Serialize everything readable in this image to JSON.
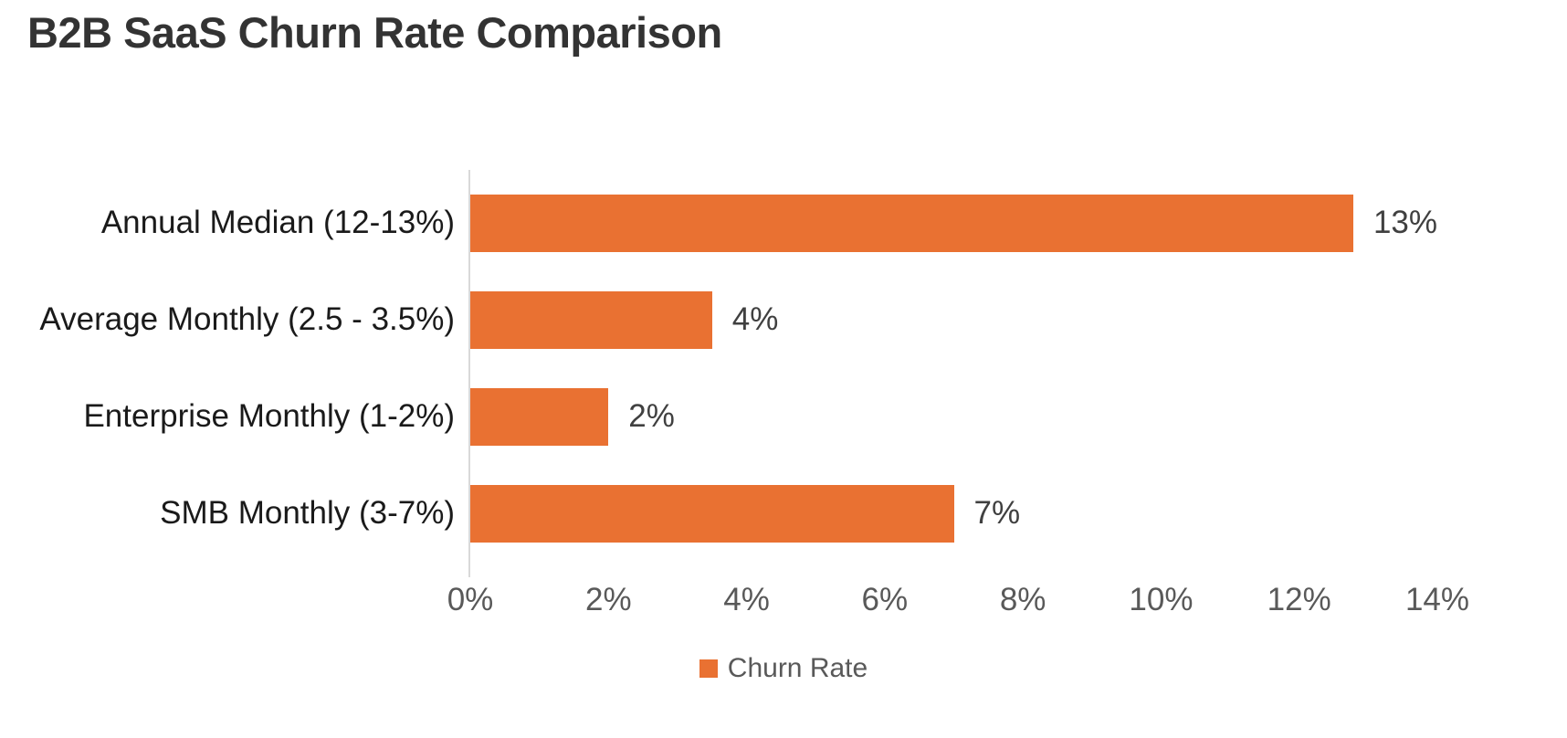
{
  "title": "B2B SaaS Churn Rate Comparison",
  "colors": {
    "bar": "#E97132",
    "axis_line": "#D9D9D9",
    "title_text": "#333333",
    "category_text": "#1A1A1A",
    "tick_text": "#595959",
    "data_label_text": "#404040",
    "legend_text": "#595959",
    "background": "#FFFFFF"
  },
  "chart_data": {
    "type": "bar",
    "orientation": "horizontal",
    "title": "B2B SaaS Churn Rate Comparison",
    "categories": [
      "Annual Median (12-13%)",
      "Average Monthly (2.5 - 3.5%)",
      "Enterprise Monthly (1-2%)",
      "SMB Monthly (3-7%)"
    ],
    "series": [
      {
        "name": "Churn Rate",
        "values": [
          13,
          3.5,
          2,
          7
        ],
        "data_labels": [
          "13%",
          "4%",
          "2%",
          "7%"
        ]
      }
    ],
    "xlabel": "",
    "ylabel": "",
    "xlim": [
      0,
      14
    ],
    "x_ticks": [
      "0%",
      "2%",
      "4%",
      "6%",
      "8%",
      "10%",
      "12%",
      "14%"
    ],
    "grid": false,
    "legend": {
      "position": "bottom",
      "entries": [
        "Churn Rate"
      ]
    }
  }
}
